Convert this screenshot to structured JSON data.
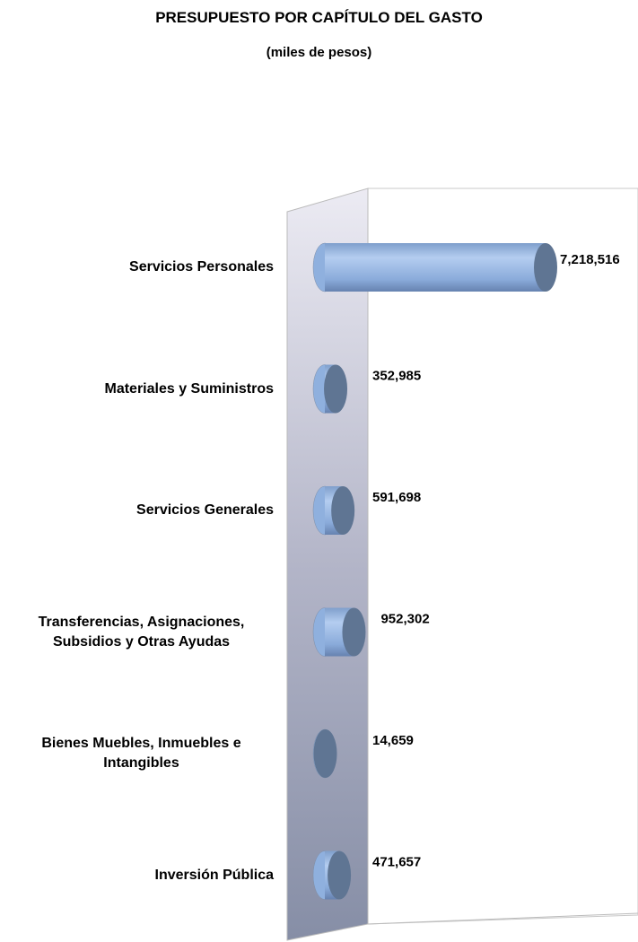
{
  "chart_data": {
    "type": "cylinder-bar",
    "title": "PRESUPUESTO POR CAPÍTULO DEL GASTO",
    "subtitle": "(miles de pesos)",
    "categories": [
      "Servicios Personales",
      "Materiales y Suministros",
      "Servicios Generales",
      "Transferencias, Asignaciones, Subsidios y Otras Ayudas",
      "Bienes Muebles, Inmuebles e Intangibles",
      "Inversión Pública"
    ],
    "values": [
      7218516,
      352985,
      591698,
      952302,
      14659,
      471657
    ],
    "value_labels": [
      "7,218,516",
      "352,985",
      "591,698",
      "952,302",
      "14,659",
      "471,657"
    ],
    "color": "#8fb0de"
  }
}
